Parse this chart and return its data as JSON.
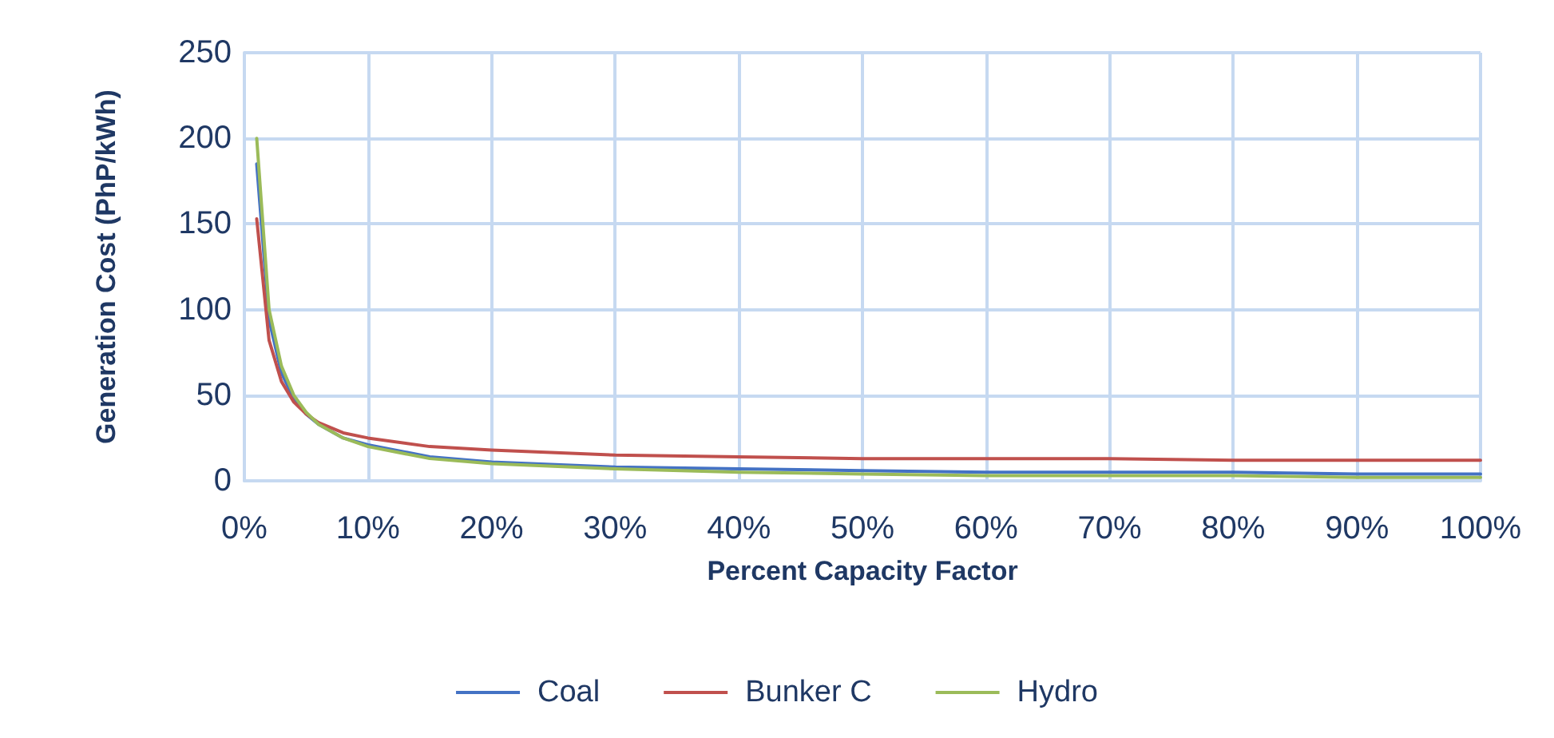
{
  "chart_data": {
    "type": "line",
    "xlabel": "Percent Capacity Factor",
    "ylabel": "Generation Cost (PhP/kWh)",
    "x": [
      1,
      2,
      3,
      4,
      5,
      6,
      8,
      10,
      15,
      20,
      30,
      40,
      50,
      60,
      70,
      80,
      90,
      100
    ],
    "series": [
      {
        "name": "Coal",
        "color": "#4472c4",
        "values": [
          185,
          94,
          63,
          48,
          39,
          33,
          25,
          21,
          14,
          11,
          8,
          7,
          6,
          5,
          5,
          5,
          4,
          4
        ]
      },
      {
        "name": "Bunker C",
        "color": "#c0504d",
        "values": [
          153,
          82,
          58,
          46,
          39,
          34,
          28,
          25,
          20,
          18,
          15,
          14,
          13,
          13,
          13,
          12,
          12,
          12
        ]
      },
      {
        "name": "Hydro",
        "color": "#9bbb59",
        "values": [
          200,
          100,
          67,
          50,
          40,
          33,
          25,
          20,
          13,
          10,
          7,
          5,
          4,
          3,
          3,
          3,
          2,
          2
        ]
      }
    ],
    "xlim": [
      0,
      100
    ],
    "xticks": [
      {
        "value": 0,
        "label": "0%"
      },
      {
        "value": 10,
        "label": "10%"
      },
      {
        "value": 20,
        "label": "20%"
      },
      {
        "value": 30,
        "label": "30%"
      },
      {
        "value": 40,
        "label": "40%"
      },
      {
        "value": 50,
        "label": "50%"
      },
      {
        "value": 60,
        "label": "60%"
      },
      {
        "value": 70,
        "label": "70%"
      },
      {
        "value": 80,
        "label": "80%"
      },
      {
        "value": 90,
        "label": "90%"
      },
      {
        "value": 100,
        "label": "100%"
      }
    ],
    "ylim": [
      0,
      250
    ],
    "yticks": [
      0,
      50,
      100,
      150,
      200,
      250
    ],
    "grid": true,
    "legend": "bottom",
    "marker": "none",
    "line_style": "solid"
  }
}
